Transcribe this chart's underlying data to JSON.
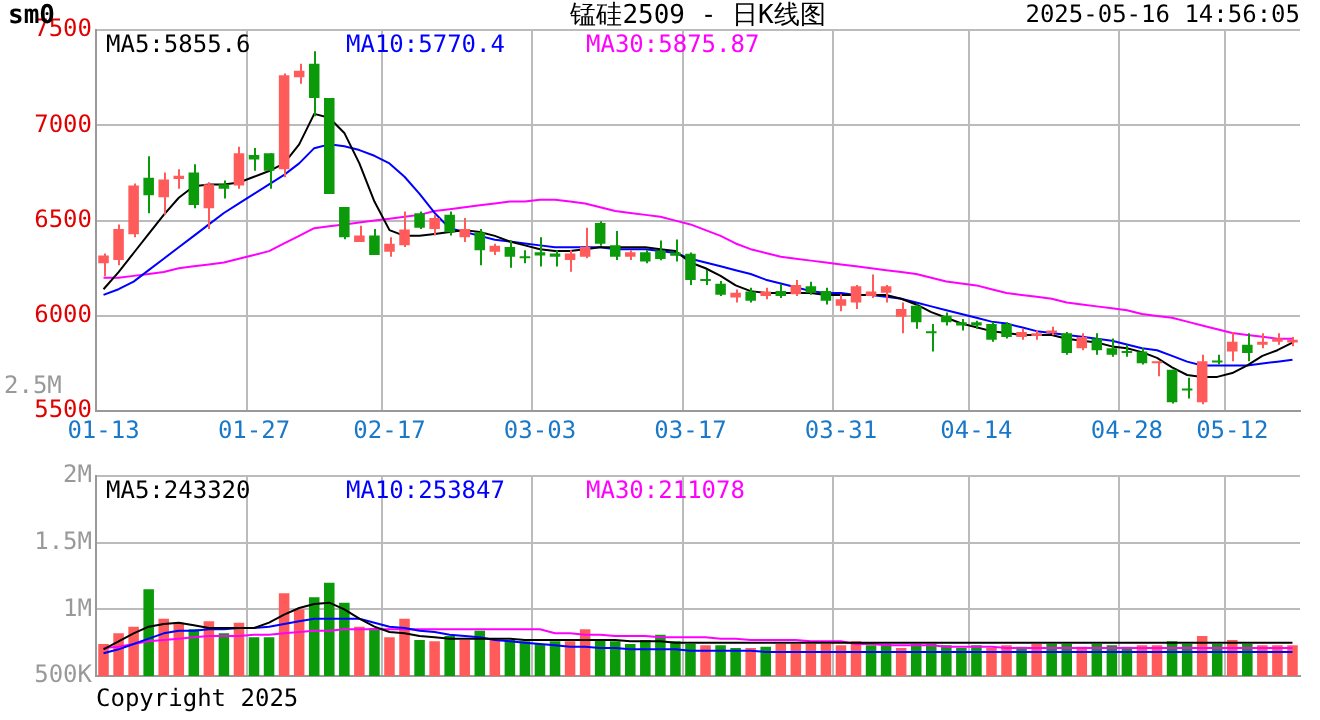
{
  "chart_data": [
    {
      "type": "candlestick",
      "title": "锰硅2509 - 日K线图",
      "subtitle": "sm0",
      "categories": [
        "01-13",
        null,
        null,
        null,
        null,
        null,
        null,
        null,
        null,
        null,
        "01-27",
        null,
        null,
        null,
        null,
        null,
        null,
        null,
        null,
        "02-17",
        null,
        null,
        null,
        null,
        null,
        null,
        null,
        null,
        null,
        "03-03",
        null,
        null,
        null,
        null,
        null,
        null,
        null,
        null,
        null,
        "03-17",
        null,
        null,
        null,
        null,
        null,
        null,
        null,
        null,
        null,
        "03-31",
        null,
        null,
        null,
        null,
        null,
        null,
        null,
        null,
        "04-14",
        null,
        null,
        null,
        null,
        null,
        null,
        null,
        null,
        null,
        "04-28",
        null,
        null,
        null,
        null,
        null,
        null,
        "05-12",
        null,
        null,
        null,
        null
      ],
      "ohlc": [
        [
          6276,
          6327,
          6208,
          6317
        ],
        [
          6293,
          6480,
          6266,
          6456
        ],
        [
          6429,
          6694,
          6412,
          6684
        ],
        [
          6725,
          6837,
          6538,
          6633
        ],
        [
          6623,
          6752,
          6531,
          6715
        ],
        [
          6718,
          6769,
          6667,
          6735
        ],
        [
          6752,
          6796,
          6565,
          6582
        ],
        [
          6565,
          6701,
          6456,
          6691
        ],
        [
          6691,
          6711,
          6616,
          6667
        ],
        [
          6684,
          6888,
          6667,
          6854
        ],
        [
          6844,
          6881,
          6762,
          6820
        ],
        [
          6854,
          6854,
          6667,
          6762
        ],
        [
          6769,
          7272,
          6728,
          7262
        ],
        [
          7252,
          7323,
          7218,
          7286
        ],
        [
          7323,
          7388,
          7048,
          7143
        ],
        [
          7143,
          7143,
          6640,
          6640
        ],
        [
          6572,
          6572,
          6402,
          6412
        ],
        [
          6388,
          6473,
          6388,
          6422
        ],
        [
          6422,
          6456,
          6320,
          6320
        ],
        [
          6337,
          6412,
          6310,
          6378
        ],
        [
          6371,
          6548,
          6361,
          6453
        ],
        [
          6538,
          6548,
          6456,
          6463
        ],
        [
          6456,
          6531,
          6422,
          6514
        ],
        [
          6531,
          6548,
          6422,
          6439
        ],
        [
          6412,
          6514,
          6388,
          6456
        ],
        [
          6439,
          6456,
          6266,
          6344
        ],
        [
          6337,
          6378,
          6320,
          6368
        ],
        [
          6361,
          6395,
          6252,
          6310
        ],
        [
          6310,
          6344,
          6276,
          6303
        ],
        [
          6334,
          6412,
          6259,
          6317
        ],
        [
          6327,
          6344,
          6259,
          6310
        ],
        [
          6293,
          6344,
          6232,
          6327
        ],
        [
          6310,
          6463,
          6303,
          6361
        ],
        [
          6487,
          6497,
          6368,
          6378
        ],
        [
          6371,
          6446,
          6293,
          6310
        ],
        [
          6310,
          6344,
          6293,
          6334
        ],
        [
          6334,
          6344,
          6276,
          6286
        ],
        [
          6343,
          6395,
          6292,
          6299
        ],
        [
          6333,
          6401,
          6285,
          6316
        ],
        [
          6326,
          6333,
          6162,
          6189
        ],
        [
          6189,
          6241,
          6162,
          6183
        ],
        [
          6169,
          6183,
          6104,
          6111
        ],
        [
          6097,
          6138,
          6070,
          6121
        ],
        [
          6128,
          6148,
          6070,
          6080
        ],
        [
          6104,
          6148,
          6087,
          6128
        ],
        [
          6131,
          6166,
          6094,
          6104
        ],
        [
          6114,
          6189,
          6104,
          6162
        ],
        [
          6155,
          6179,
          6111,
          6121
        ],
        [
          6131,
          6148,
          6060,
          6080
        ],
        [
          6053,
          6114,
          6025,
          6087
        ],
        [
          6070,
          6162,
          6036,
          6155
        ],
        [
          6104,
          6217,
          6094,
          6128
        ],
        [
          6121,
          6162,
          6070,
          6155
        ],
        [
          5995,
          6070,
          5909,
          6036
        ],
        [
          6053,
          6060,
          5933,
          5967
        ],
        [
          5916,
          5957,
          5813,
          5909
        ],
        [
          6001,
          6018,
          5950,
          5967
        ],
        [
          5967,
          5984,
          5923,
          5950
        ],
        [
          5967,
          5974,
          5933,
          5950
        ],
        [
          5957,
          5967,
          5865,
          5875
        ],
        [
          5957,
          5967,
          5882,
          5889
        ],
        [
          5889,
          5933,
          5875,
          5916
        ],
        [
          5895,
          5923,
          5875,
          5909
        ],
        [
          5909,
          5943,
          5899,
          5923
        ],
        [
          5909,
          5916,
          5796,
          5806
        ],
        [
          5830,
          5909,
          5820,
          5889
        ],
        [
          5882,
          5909,
          5796,
          5820
        ],
        [
          5830,
          5882,
          5786,
          5796
        ],
        [
          5813,
          5848,
          5786,
          5806
        ],
        [
          5813,
          5830,
          5745,
          5752
        ],
        [
          5752,
          5762,
          5683,
          5759
        ],
        [
          5718,
          5718,
          5540,
          5547
        ],
        [
          5615,
          5676,
          5567,
          5608
        ],
        [
          5547,
          5796,
          5537,
          5762
        ],
        [
          5762,
          5796,
          5745,
          5755
        ],
        [
          5813,
          5916,
          5762,
          5865
        ],
        [
          5848,
          5909,
          5762,
          5806
        ],
        [
          5848,
          5909,
          5830,
          5865
        ],
        [
          5865,
          5909,
          5848,
          5882
        ],
        [
          5861,
          5889,
          5841,
          5875
        ]
      ],
      "colors": [
        "#ff5b5b",
        "#ff5b5b",
        "#ff5b5b",
        "#0a9a0a",
        "#ff5b5b",
        "#ff5b5b",
        "#0a9a0a",
        "#ff5b5b",
        "#0a9a0a",
        "#ff5b5b",
        "#0a9a0a",
        "#0a9a0a",
        "#ff5b5b",
        "#ff5b5b",
        "#0a9a0a",
        "#0a9a0a",
        "#0a9a0a",
        "#ff5b5b",
        "#0a9a0a",
        "#ff5b5b",
        "#ff5b5b",
        "#0a9a0a",
        "#ff5b5b",
        "#0a9a0a",
        "#ff5b5b",
        "#0a9a0a",
        "#ff5b5b",
        "#0a9a0a",
        "#0a9a0a",
        "#0a9a0a",
        "#0a9a0a",
        "#ff5b5b",
        "#ff5b5b",
        "#0a9a0a",
        "#0a9a0a",
        "#ff5b5b",
        "#0a9a0a",
        "#0a9a0a",
        "#0a9a0a",
        "#0a9a0a",
        "#0a9a0a",
        "#0a9a0a",
        "#ff5b5b",
        "#0a9a0a",
        "#ff5b5b",
        "#0a9a0a",
        "#ff5b5b",
        "#0a9a0a",
        "#0a9a0a",
        "#ff5b5b",
        "#ff5b5b",
        "#ff5b5b",
        "#ff5b5b",
        "#ff5b5b",
        "#0a9a0a",
        "#0a9a0a",
        "#0a9a0a",
        "#0a9a0a",
        "#0a9a0a",
        "#0a9a0a",
        "#0a9a0a",
        "#ff5b5b",
        "#ff5b5b",
        "#ff5b5b",
        "#0a9a0a",
        "#ff5b5b",
        "#0a9a0a",
        "#0a9a0a",
        "#0a9a0a",
        "#0a9a0a",
        "#ff5b5b",
        "#0a9a0a",
        "#0a9a0a",
        "#ff5b5b",
        "#0a9a0a",
        "#ff5b5b",
        "#0a9a0a",
        "#ff5b5b",
        "#ff5b5b",
        "#ff5b5b"
      ],
      "series": [
        {
          "type": "line",
          "name": "MA5:5855.6",
          "color": "#000000",
          "values": [
            6140,
            6230,
            6330,
            6430,
            6530,
            6620,
            6680,
            6690,
            6690,
            6700,
            6730,
            6760,
            6800,
            6900,
            7060,
            7040,
            6960,
            6800,
            6600,
            6450,
            6420,
            6420,
            6430,
            6440,
            6450,
            6440,
            6420,
            6390,
            6370,
            6350,
            6340,
            6340,
            6350,
            6360,
            6360,
            6360,
            6360,
            6350,
            6340,
            6280,
            6250,
            6210,
            6160,
            6130,
            6120,
            6120,
            6120,
            6120,
            6110,
            6110,
            6110,
            6110,
            6110,
            6090,
            6060,
            6020,
            5990,
            5960,
            5940,
            5920,
            5910,
            5900,
            5900,
            5900,
            5880,
            5870,
            5860,
            5840,
            5830,
            5810,
            5780,
            5730,
            5690,
            5680,
            5680,
            5700,
            5740,
            5790,
            5820,
            5860
          ]
        },
        {
          "type": "line",
          "name": "MA10:5770.4",
          "color": "#0000ff",
          "values": [
            6110,
            6140,
            6180,
            6240,
            6300,
            6360,
            6420,
            6480,
            6540,
            6590,
            6640,
            6690,
            6740,
            6800,
            6880,
            6900,
            6890,
            6870,
            6840,
            6800,
            6730,
            6640,
            6540,
            6460,
            6440,
            6420,
            6400,
            6390,
            6380,
            6370,
            6360,
            6360,
            6360,
            6360,
            6350,
            6350,
            6350,
            6340,
            6330,
            6300,
            6280,
            6260,
            6240,
            6220,
            6190,
            6170,
            6150,
            6130,
            6120,
            6120,
            6110,
            6110,
            6100,
            6090,
            6070,
            6050,
            6030,
            6010,
            5990,
            5970,
            5960,
            5940,
            5920,
            5910,
            5900,
            5890,
            5880,
            5870,
            5850,
            5830,
            5820,
            5790,
            5760,
            5740,
            5740,
            5740,
            5740,
            5750,
            5760,
            5770
          ]
        },
        {
          "type": "line",
          "name": "MA30:5875.87",
          "color": "#ff00ff",
          "values": [
            6200,
            6200,
            6210,
            6220,
            6230,
            6250,
            6260,
            6270,
            6280,
            6300,
            6320,
            6340,
            6380,
            6420,
            6460,
            6470,
            6480,
            6490,
            6500,
            6510,
            6520,
            6530,
            6550,
            6560,
            6570,
            6580,
            6590,
            6600,
            6600,
            6610,
            6610,
            6600,
            6590,
            6570,
            6550,
            6540,
            6530,
            6520,
            6500,
            6480,
            6450,
            6420,
            6380,
            6350,
            6330,
            6310,
            6300,
            6290,
            6280,
            6270,
            6260,
            6250,
            6240,
            6230,
            6220,
            6200,
            6180,
            6170,
            6160,
            6140,
            6120,
            6110,
            6100,
            6090,
            6070,
            6060,
            6050,
            6040,
            6030,
            6010,
            6000,
            5990,
            5970,
            5950,
            5930,
            5910,
            5900,
            5890,
            5880,
            5880
          ]
        }
      ],
      "ylim": [
        5500,
        7500
      ],
      "yticks": [
        5500,
        6000,
        6500,
        7000,
        7500
      ],
      "grid": true,
      "annotations": [
        "2025-05-16 14:56:05",
        "2.5M"
      ]
    },
    {
      "type": "bar",
      "categories": [
        null,
        null,
        null,
        null,
        null,
        null,
        null,
        null,
        null,
        null,
        null,
        null,
        null,
        null,
        null,
        null,
        null,
        null,
        null,
        null,
        null,
        null,
        null,
        null,
        null,
        null,
        null,
        null,
        null,
        null,
        null,
        null,
        null,
        null,
        null,
        null,
        null,
        null,
        null,
        null,
        null,
        null,
        null,
        null,
        null,
        null,
        null,
        null,
        null,
        null,
        null,
        null,
        null,
        null,
        null,
        null,
        null,
        null,
        null,
        null,
        null,
        null,
        null,
        null,
        null,
        null,
        null,
        null,
        null,
        null,
        null,
        null,
        null,
        null,
        null,
        null,
        null,
        null,
        null,
        null
      ],
      "series": [
        {
          "type": "bar",
          "values": [
            740000,
            820000,
            870000,
            1150000,
            930000,
            900000,
            850000,
            910000,
            820000,
            900000,
            790000,
            790000,
            1120000,
            1000000,
            1090000,
            1200000,
            1050000,
            870000,
            860000,
            790000,
            930000,
            770000,
            760000,
            800000,
            770000,
            840000,
            770000,
            770000,
            760000,
            740000,
            760000,
            760000,
            850000,
            770000,
            760000,
            740000,
            770000,
            810000,
            760000,
            740000,
            730000,
            730000,
            710000,
            710000,
            720000,
            740000,
            740000,
            740000,
            740000,
            730000,
            760000,
            730000,
            740000,
            710000,
            740000,
            740000,
            730000,
            710000,
            730000,
            710000,
            730000,
            720000,
            740000,
            740000,
            740000,
            720000,
            740000,
            730000,
            720000,
            730000,
            730000,
            760000,
            740000,
            800000,
            740000,
            770000,
            740000,
            730000,
            730000,
            730000
          ],
          "colors": [
            "#ff5b5b",
            "#ff5b5b",
            "#ff5b5b",
            "#0a9a0a",
            "#ff5b5b",
            "#ff5b5b",
            "#0a9a0a",
            "#ff5b5b",
            "#0a9a0a",
            "#ff5b5b",
            "#0a9a0a",
            "#0a9a0a",
            "#ff5b5b",
            "#ff5b5b",
            "#0a9a0a",
            "#0a9a0a",
            "#0a9a0a",
            "#ff5b5b",
            "#0a9a0a",
            "#ff5b5b",
            "#ff5b5b",
            "#0a9a0a",
            "#ff5b5b",
            "#0a9a0a",
            "#ff5b5b",
            "#0a9a0a",
            "#ff5b5b",
            "#0a9a0a",
            "#0a9a0a",
            "#0a9a0a",
            "#0a9a0a",
            "#ff5b5b",
            "#ff5b5b",
            "#0a9a0a",
            "#0a9a0a",
            "#0a9a0a",
            "#0a9a0a",
            "#0a9a0a",
            "#0a9a0a",
            "#0a9a0a",
            "#ff5b5b",
            "#0a9a0a",
            "#0a9a0a",
            "#ff5b5b",
            "#0a9a0a",
            "#ff5b5b",
            "#ff5b5b",
            "#ff5b5b",
            "#ff5b5b",
            "#ff5b5b",
            "#ff5b5b",
            "#0a9a0a",
            "#0a9a0a",
            "#ff5b5b",
            "#0a9a0a",
            "#0a9a0a",
            "#0a9a0a",
            "#0a9a0a",
            "#0a9a0a",
            "#ff5b5b",
            "#ff5b5b",
            "#0a9a0a",
            "#ff5b5b",
            "#0a9a0a",
            "#0a9a0a",
            "#ff5b5b",
            "#0a9a0a",
            "#0a9a0a",
            "#0a9a0a",
            "#ff5b5b",
            "#ff5b5b",
            "#0a9a0a",
            "#0a9a0a",
            "#ff5b5b",
            "#0a9a0a",
            "#ff5b5b",
            "#0a9a0a",
            "#ff5b5b",
            "#ff5b5b",
            "#ff5b5b"
          ]
        },
        {
          "type": "line",
          "name": "MA5:243320",
          "color": "#000000",
          "values": [
            700000,
            760000,
            820000,
            870000,
            890000,
            900000,
            880000,
            860000,
            860000,
            860000,
            860000,
            900000,
            960000,
            1010000,
            1040000,
            1050000,
            1000000,
            930000,
            870000,
            830000,
            820000,
            800000,
            790000,
            780000,
            780000,
            780000,
            780000,
            780000,
            770000,
            770000,
            770000,
            770000,
            770000,
            770000,
            770000,
            760000,
            760000,
            760000,
            750000,
            750000,
            750000,
            750000,
            750000,
            750000,
            750000,
            750000,
            750000,
            750000,
            750000,
            750000,
            750000,
            750000,
            750000,
            750000,
            750000,
            750000,
            750000,
            750000,
            750000,
            750000,
            750000,
            750000,
            750000,
            750000,
            750000,
            750000,
            750000,
            750000,
            750000,
            750000,
            750000,
            750000,
            750000,
            750000,
            750000,
            750000,
            750000,
            750000,
            750000,
            750000
          ]
        },
        {
          "type": "line",
          "name": "MA10:253847",
          "color": "#0000ff",
          "values": [
            670000,
            700000,
            740000,
            780000,
            820000,
            840000,
            840000,
            850000,
            850000,
            860000,
            860000,
            870000,
            890000,
            910000,
            930000,
            930000,
            930000,
            930000,
            900000,
            870000,
            860000,
            840000,
            830000,
            810000,
            800000,
            790000,
            770000,
            760000,
            750000,
            740000,
            730000,
            720000,
            720000,
            710000,
            710000,
            700000,
            700000,
            700000,
            700000,
            690000,
            690000,
            690000,
            690000,
            690000,
            680000,
            680000,
            680000,
            680000,
            680000,
            680000,
            680000,
            680000,
            680000,
            680000,
            680000,
            680000,
            680000,
            680000,
            680000,
            680000,
            680000,
            680000,
            680000,
            680000,
            680000,
            680000,
            680000,
            680000,
            680000,
            680000,
            680000,
            680000,
            680000,
            680000,
            680000,
            680000,
            680000,
            680000,
            680000,
            680000
          ]
        },
        {
          "type": "line",
          "name": "MA30:211078",
          "color": "#ff00ff",
          "values": [
            710000,
            720000,
            740000,
            760000,
            770000,
            780000,
            790000,
            800000,
            800000,
            800000,
            810000,
            810000,
            820000,
            830000,
            840000,
            840000,
            850000,
            850000,
            850000,
            850000,
            850000,
            850000,
            850000,
            850000,
            850000,
            850000,
            850000,
            850000,
            850000,
            850000,
            820000,
            820000,
            810000,
            810000,
            800000,
            800000,
            800000,
            790000,
            790000,
            790000,
            790000,
            780000,
            780000,
            770000,
            770000,
            770000,
            770000,
            760000,
            760000,
            760000,
            740000,
            740000,
            730000,
            730000,
            730000,
            730000,
            720000,
            720000,
            720000,
            720000,
            710000,
            710000,
            710000,
            710000,
            710000,
            710000,
            710000,
            710000,
            710000,
            710000,
            710000,
            710000,
            710000,
            710000,
            710000,
            710000,
            710000,
            710000,
            710000,
            710000
          ]
        }
      ],
      "ylim": [
        500000,
        2000000
      ],
      "yticks": [
        {
          "value": 500000,
          "label": "500K"
        },
        {
          "value": 1000000,
          "label": "1M"
        },
        {
          "value": 1500000,
          "label": "1.5M"
        },
        {
          "value": 2000000,
          "label": "2M"
        }
      ],
      "grid": true,
      "tick_labels": "y",
      "annotations": [
        "Copyright 2025"
      ]
    }
  ]
}
